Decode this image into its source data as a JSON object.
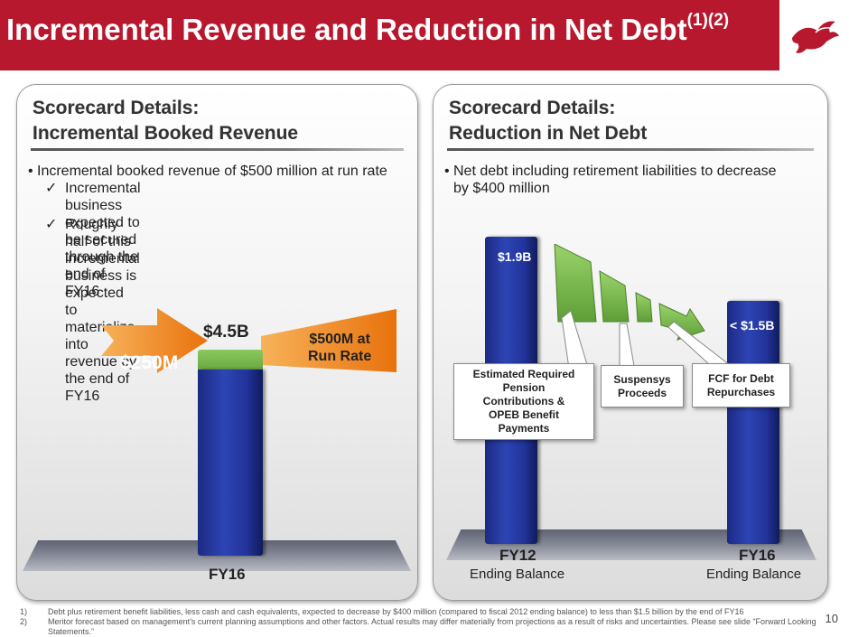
{
  "title": {
    "main": "Incremental Revenue and Reduction in Net Debt",
    "sup": "(1)(2)"
  },
  "left_panel": {
    "title_line1": "Scorecard Details:",
    "title_line2": "Incremental Booked Revenue",
    "bullet": "Incremental booked revenue of $500 million at run rate",
    "checks": [
      {
        "line1": "Incremental business expected to be secured",
        "line2": "through the end of FY16"
      },
      {
        "line1": "Roughly half of this incremental business is",
        "line2": "expected to materialize into revenue by the end of",
        "line3": "FY16"
      }
    ],
    "bar_value": "$4.5B",
    "arrow_in": "$250M",
    "arrow_out_line1": "$500M at",
    "arrow_out_line2": "Run Rate",
    "axis_label": "FY16"
  },
  "right_panel": {
    "title_line1": "Scorecard Details:",
    "title_line2": "Reduction in Net Debt",
    "bullet_line1": "Net debt including retirement liabilities to decrease",
    "bullet_line2": "by $400 million",
    "bar1_value": "$1.9B",
    "bar2_value": "< $1.5B",
    "callouts": [
      {
        "lines": [
          "Estimated Required",
          "Pension",
          "Contributions &",
          "OPEB Benefit",
          "Payments"
        ]
      },
      {
        "lines": [
          "Suspensys",
          "Proceeds"
        ]
      },
      {
        "lines": [
          "FCF for Debt",
          "Repurchases"
        ]
      }
    ],
    "bar1_label": "FY12",
    "bar1_sub": "Ending Balance",
    "bar2_label": "FY16",
    "bar2_sub": "Ending Balance"
  },
  "footnotes": [
    {
      "num": "1)",
      "text": "Debt plus retirement benefit liabilities, less cash and cash equivalents, expected to decrease by $400 million (compared to fiscal 2012 ending balance) to less than $1.5 billion by the end of FY16"
    },
    {
      "num": "2)",
      "text": "Meritor forecast based on management’s current planning assumptions and other factors. Actual results may differ materially from projections as a result of risks and uncertainties. Please see slide “Forward Looking Statements.”"
    }
  ],
  "page_number": "10",
  "colors": {
    "title_bar": "#b8182e",
    "bar_blue": "#2d45b4",
    "green": "#6aa843",
    "orange": "#f08a1c"
  }
}
